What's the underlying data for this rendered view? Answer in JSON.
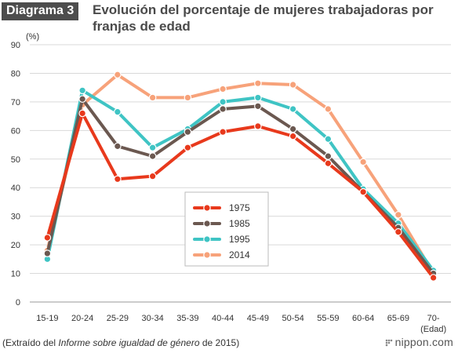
{
  "header": {
    "badge": "Diagrama 3",
    "title": "Evolución del porcentaje de mujeres trabajadoras por franjas de edad"
  },
  "footer": {
    "source_prefix": "(Extraído del ",
    "source_italic": "Informe sobre igualdad de género",
    "source_suffix": " de 2015)",
    "logo": "nippon.com"
  },
  "colors": {
    "1975": "#e8391c",
    "1985": "#6b5850",
    "1995": "#3fc4c4",
    "2014": "#f7a27a"
  },
  "chart_data": {
    "type": "line",
    "ylabel": "(%)",
    "xlabel": "(Edad)",
    "ylim": [
      0,
      90
    ],
    "yticks": [
      0,
      10,
      20,
      30,
      40,
      50,
      60,
      70,
      80,
      90
    ],
    "categories": [
      "15-19",
      "20-24",
      "25-29",
      "30-34",
      "35-39",
      "40-44",
      "45-49",
      "50-54",
      "55-59",
      "60-64",
      "65-69",
      "70-"
    ],
    "grid": true,
    "legend_position": "center",
    "series": [
      {
        "name": "1975",
        "values": [
          22.5,
          66,
          43,
          44,
          54,
          59.5,
          61.5,
          58,
          48.5,
          38.5,
          24.5,
          8.5
        ]
      },
      {
        "name": "1985",
        "values": [
          17,
          71,
          54.5,
          51,
          59.5,
          67.5,
          68.5,
          60.5,
          51,
          38.5,
          26,
          10
        ]
      },
      {
        "name": "1995",
        "values": [
          15,
          74,
          66.5,
          54,
          60.5,
          70,
          71.5,
          67.5,
          57,
          39.5,
          27.5,
          11
        ]
      },
      {
        "name": "2014",
        "values": [
          18,
          69,
          79.5,
          71.5,
          71.5,
          74.5,
          76.5,
          76,
          67.5,
          49,
          30.5,
          10
        ]
      }
    ]
  }
}
